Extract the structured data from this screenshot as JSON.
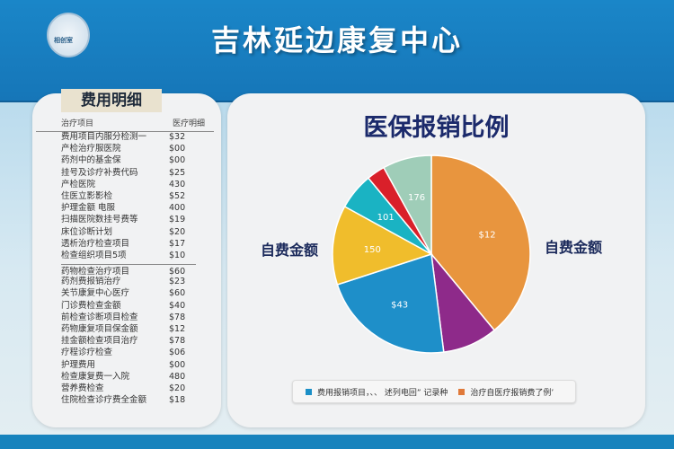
{
  "header": {
    "title": "吉林延边康复中心",
    "logo_text": "相创室"
  },
  "left": {
    "title": "费用明细",
    "columns": [
      "治疗项目",
      "医疗明细"
    ],
    "rows": [
      [
        "费用项目内服分检测一",
        "$32"
      ],
      [
        "产检治疗服医院",
        "$00"
      ],
      [
        "药剂中的基金保",
        "$00"
      ],
      [
        "挂号及诊疗补费代码",
        "$25"
      ],
      [
        "产检医院",
        "430"
      ],
      [
        "住医立影影检",
        "$52"
      ],
      [
        "护理金额 电服",
        "400"
      ],
      [
        "扫描医院数挂号费等",
        "$19"
      ],
      [
        "床位诊断计划",
        "$20"
      ],
      [
        "透析治疗检查项目",
        "$17"
      ],
      [
        "检查组织项目5项",
        "$10"
      ],
      [
        "药物检查治疗项目",
        "$60"
      ],
      [
        "药剂费报销治疗",
        "$23"
      ],
      [
        "关节康复中心医疗",
        "$60"
      ],
      [
        "门诊费检查金额",
        "$40"
      ],
      [
        "前检查诊断项目检查",
        "$78"
      ],
      [
        "药物康复项目保金额",
        "$12"
      ],
      [
        "挂金额检查项目治疗",
        "$78"
      ],
      [
        "疗程诊疗检查",
        "$06"
      ],
      [
        "护理费用",
        "$00"
      ],
      [
        "检查康复费一入院",
        "480"
      ],
      [
        "营养费检查",
        "$20"
      ],
      [
        "住院检查诊疗费全金额",
        "$18"
      ]
    ]
  },
  "right": {
    "title": "医保报销比例",
    "side_label_left": "自费金额",
    "side_label_right": "自费金额",
    "legend": [
      {
        "label": "费用报销项目，、、  述列电回” 记录种",
        "color": "#1b8fc7"
      },
      {
        "label": "治疗自医疗报销费了例’",
        "color": "#e07a3a"
      }
    ]
  },
  "chart_data": {
    "type": "pie",
    "slices": [
      {
        "label": "$12",
        "share": 39,
        "color": "#e8953e"
      },
      {
        "label": "",
        "share": 9,
        "color": "#8e2a8a"
      },
      {
        "label": "$43",
        "share": 22,
        "color": "#1e8fc9"
      },
      {
        "label": "150",
        "share": 13,
        "color": "#f0bd2c"
      },
      {
        "label": "101",
        "share": 6,
        "color": "#1ab3c3"
      },
      {
        "label": "",
        "share": 3,
        "color": "#d9202a"
      },
      {
        "label": "176",
        "share": 8,
        "color": "#9fcdb8"
      }
    ]
  }
}
